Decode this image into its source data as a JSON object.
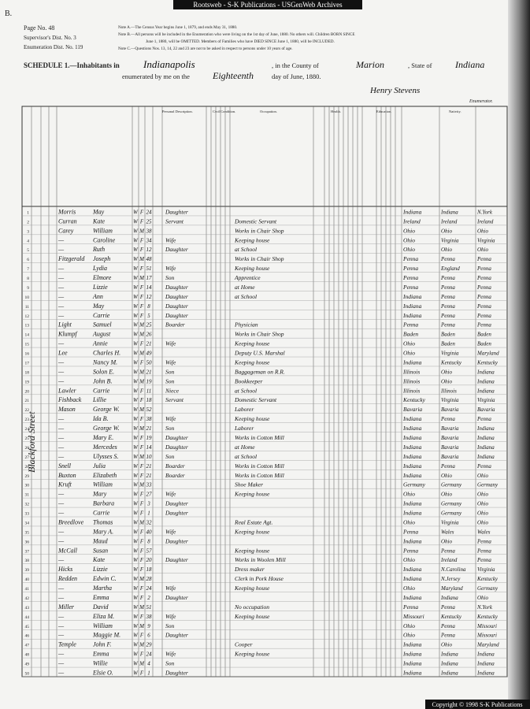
{
  "banner": "Rootsweb - S-K Publications - USGenWeb Archives",
  "corner": "B.",
  "header": {
    "page_no": "Page No. 48",
    "supervisor": "Supervisor's Dist. No. 3",
    "enumeration": "Enumeration Dist. No. 119",
    "notes": [
      "Note A.—The Census Year begins June 1, 1879, and ends May 31, 1880.",
      "Note B.—All persons will be included in the Enumeration who were living on the 1st day of June, 1880. No others will. Children BORN SINCE",
      "June 1, 1880, will be OMITTED. Members of Families who have DIED SINCE June 1, 1880, will be INCLUDED.",
      "Note C.—Questions Nos. 13, 14, 22 and 23 are not to be asked in respect to persons under 10 years of age."
    ]
  },
  "schedule": {
    "label": "SCHEDULE 1.—Inhabitants in",
    "city": "Indianapolis",
    "county_label": ", in the County of",
    "county": "Marion",
    "state_label": ", State of",
    "state": "Indiana",
    "enum_label": "enumerated by me on the",
    "day": "Eighteenth",
    "month_label": "day of June, 1880.",
    "enumerator": "Henry Stevens",
    "enumerator_label": "Enumerator."
  },
  "column_headers": [
    "Personal Description.",
    "Civil Condition.",
    "Occupation.",
    "Health.",
    "Education.",
    "Nativity."
  ],
  "side_label": "Blackford Street",
  "table": {
    "rows": [
      {
        "line": 1,
        "surname": "Morris",
        "given": "May",
        "color": "W",
        "sex": "F",
        "age": "24",
        "relation": "Daughter",
        "occupation": null,
        "birth": "Indiana",
        "father": "Indiana",
        "mother": "N.York"
      },
      {
        "line": 2,
        "surname": "Curran",
        "given": "Kate",
        "color": "W",
        "sex": "F",
        "age": "25",
        "relation": "Servant",
        "occupation": "Domestic Servant",
        "birth": "Ireland",
        "father": "Ireland",
        "mother": "Ireland"
      },
      {
        "line": 3,
        "surname": "Carey",
        "given": "William",
        "color": "W",
        "sex": "M",
        "age": "38",
        "relation": null,
        "occupation": "Works in Chair Shop",
        "birth": "Ohio",
        "father": "Ohio",
        "mother": "Ohio"
      },
      {
        "line": 4,
        "surname": "—",
        "given": "Caroline",
        "color": "W",
        "sex": "F",
        "age": "34",
        "relation": "Wife",
        "occupation": "Keeping house",
        "birth": "Ohio",
        "father": "Virginia",
        "mother": "Virginia"
      },
      {
        "line": 5,
        "surname": "—",
        "given": "Ruth",
        "color": "W",
        "sex": "F",
        "age": "12",
        "relation": "Daughter",
        "occupation": "at School",
        "birth": "Ohio",
        "father": "Ohio",
        "mother": "Ohio"
      },
      {
        "line": 6,
        "surname": "Fitzgerald",
        "given": "Joseph",
        "color": "W",
        "sex": "M",
        "age": "48",
        "relation": null,
        "occupation": "Works in Chair Shop",
        "birth": "Penna",
        "father": "Penna",
        "mother": "Penna"
      },
      {
        "line": 7,
        "surname": "—",
        "given": "Lydia",
        "color": "W",
        "sex": "F",
        "age": "51",
        "relation": "Wife",
        "occupation": "Keeping house",
        "birth": "Penna",
        "father": "England",
        "mother": "Penna"
      },
      {
        "line": 8,
        "surname": "—",
        "given": "Elmore",
        "color": "W",
        "sex": "M",
        "age": "17",
        "relation": "Son",
        "occupation": "Apprentice",
        "birth": "Penna",
        "father": "Penna",
        "mother": "Penna"
      },
      {
        "line": 9,
        "surname": "—",
        "given": "Lizzie",
        "color": "W",
        "sex": "F",
        "age": "14",
        "relation": "Daughter",
        "occupation": "at Home",
        "birth": "Penna",
        "father": "Penna",
        "mother": "Penna"
      },
      {
        "line": 10,
        "surname": "—",
        "given": "Ann",
        "color": "W",
        "sex": "F",
        "age": "12",
        "relation": "Daughter",
        "occupation": "at School",
        "birth": "Indiana",
        "father": "Penna",
        "mother": "Penna"
      },
      {
        "line": 11,
        "surname": "—",
        "given": "May",
        "color": "W",
        "sex": "F",
        "age": "8",
        "relation": "Daughter",
        "occupation": null,
        "birth": "Indiana",
        "father": "Penna",
        "mother": "Penna"
      },
      {
        "line": 12,
        "surname": "—",
        "given": "Carrie",
        "color": "W",
        "sex": "F",
        "age": "5",
        "relation": "Daughter",
        "occupation": null,
        "birth": "Indiana",
        "father": "Penna",
        "mother": "Penna"
      },
      {
        "line": 13,
        "surname": "Light",
        "given": "Samuel",
        "color": "W",
        "sex": "M",
        "age": "25",
        "relation": "Boarder",
        "occupation": "Physician",
        "birth": "Penna",
        "father": "Penna",
        "mother": "Penna"
      },
      {
        "line": 14,
        "surname": "Klumpf",
        "given": "August",
        "color": "W",
        "sex": "M",
        "age": "26",
        "relation": null,
        "occupation": "Works in Chair Shop",
        "birth": "Baden",
        "father": "Baden",
        "mother": "Baden"
      },
      {
        "line": 15,
        "surname": "—",
        "given": "Annie",
        "color": "W",
        "sex": "F",
        "age": "21",
        "relation": "Wife",
        "occupation": "Keeping house",
        "birth": "Ohio",
        "father": "Baden",
        "mother": "Baden"
      },
      {
        "line": 16,
        "surname": "Lee",
        "given": "Charles H.",
        "color": "W",
        "sex": "M",
        "age": "49",
        "relation": null,
        "occupation": "Deputy U.S. Marshal",
        "birth": "Ohio",
        "father": "Virginia",
        "mother": "Maryland"
      },
      {
        "line": 17,
        "surname": "—",
        "given": "Nancy M.",
        "color": "W",
        "sex": "F",
        "age": "50",
        "relation": "Wife",
        "occupation": "Keeping house",
        "birth": "Indiana",
        "father": "Kentucky",
        "mother": "Kentucky"
      },
      {
        "line": 18,
        "surname": "—",
        "given": "Solon E.",
        "color": "W",
        "sex": "M",
        "age": "21",
        "relation": "Son",
        "occupation": "Baggageman on R.R.",
        "birth": "Illinois",
        "father": "Ohio",
        "mother": "Indiana"
      },
      {
        "line": 19,
        "surname": "—",
        "given": "John B.",
        "color": "W",
        "sex": "M",
        "age": "19",
        "relation": "Son",
        "occupation": "Bookkeeper",
        "birth": "Illinois",
        "father": "Ohio",
        "mother": "Indiana"
      },
      {
        "line": 20,
        "surname": "Lawler",
        "given": "Carrie",
        "color": "W",
        "sex": "F",
        "age": "11",
        "relation": "Niece",
        "occupation": "at School",
        "birth": "Illinois",
        "father": "Illinois",
        "mother": "Indiana"
      },
      {
        "line": 21,
        "surname": "Fishback",
        "given": "Lillie",
        "color": "W",
        "sex": "F",
        "age": "18",
        "relation": "Servant",
        "occupation": "Domestic Servant",
        "birth": "Kentucky",
        "father": "Virginia",
        "mother": "Virginia"
      },
      {
        "line": 22,
        "surname": "Mason",
        "given": "George W.",
        "color": "W",
        "sex": "M",
        "age": "52",
        "relation": null,
        "occupation": "Laborer",
        "birth": "Bavaria",
        "father": "Bavaria",
        "mother": "Bavaria"
      },
      {
        "line": 23,
        "surname": "—",
        "given": "Ida B.",
        "color": "W",
        "sex": "F",
        "age": "38",
        "relation": "Wife",
        "occupation": "Keeping house",
        "birth": "Indiana",
        "father": "Penna",
        "mother": "Penna"
      },
      {
        "line": 24,
        "surname": "—",
        "given": "George W.",
        "color": "W",
        "sex": "M",
        "age": "21",
        "relation": "Son",
        "occupation": "Laborer",
        "birth": "Indiana",
        "father": "Bavaria",
        "mother": "Indiana"
      },
      {
        "line": 25,
        "surname": "—",
        "given": "Mary E.",
        "color": "W",
        "sex": "F",
        "age": "19",
        "relation": "Daughter",
        "occupation": "Works in Cotton Mill",
        "birth": "Indiana",
        "father": "Bavaria",
        "mother": "Indiana"
      },
      {
        "line": 26,
        "surname": "—",
        "given": "Mercedes",
        "color": "W",
        "sex": "F",
        "age": "14",
        "relation": "Daughter",
        "occupation": "at Home",
        "birth": "Indiana",
        "father": "Bavaria",
        "mother": "Indiana"
      },
      {
        "line": 27,
        "surname": "—",
        "given": "Ulysses S.",
        "color": "W",
        "sex": "M",
        "age": "10",
        "relation": "Son",
        "occupation": "at School",
        "birth": "Indiana",
        "father": "Bavaria",
        "mother": "Indiana"
      },
      {
        "line": 28,
        "surname": "Snell",
        "given": "Julia",
        "color": "W",
        "sex": "F",
        "age": "21",
        "relation": "Boarder",
        "occupation": "Works in Cotton Mill",
        "birth": "Indiana",
        "father": "Penna",
        "mother": "Penna"
      },
      {
        "line": 29,
        "surname": "Buxton",
        "given": "Elizabeth",
        "color": "W",
        "sex": "F",
        "age": "21",
        "relation": "Boarder",
        "occupation": "Works in Cotton Mill",
        "birth": "Indiana",
        "father": "Ohio",
        "mother": "Ohio"
      },
      {
        "line": 30,
        "surname": "Kruft",
        "given": "William",
        "color": "W",
        "sex": "M",
        "age": "33",
        "relation": null,
        "occupation": "Shoe Maker",
        "birth": "Germany",
        "father": "Germany",
        "mother": "Germany"
      },
      {
        "line": 31,
        "surname": "—",
        "given": "Mary",
        "color": "W",
        "sex": "F",
        "age": "27",
        "relation": "Wife",
        "occupation": "Keeping house",
        "birth": "Ohio",
        "father": "Ohio",
        "mother": "Ohio"
      },
      {
        "line": 32,
        "surname": "—",
        "given": "Barbara",
        "color": "W",
        "sex": "F",
        "age": "3",
        "relation": "Daughter",
        "occupation": null,
        "birth": "Indiana",
        "father": "Germany",
        "mother": "Ohio"
      },
      {
        "line": 33,
        "surname": "—",
        "given": "Carrie",
        "color": "W",
        "sex": "F",
        "age": "1",
        "relation": "Daughter",
        "occupation": null,
        "birth": "Indiana",
        "father": "Germany",
        "mother": "Ohio"
      },
      {
        "line": 34,
        "surname": "Breedlove",
        "given": "Thomas",
        "color": "W",
        "sex": "M",
        "age": "32",
        "relation": null,
        "occupation": "Real Estate Agt.",
        "birth": "Ohio",
        "father": "Virginia",
        "mother": "Ohio"
      },
      {
        "line": 35,
        "surname": "—",
        "given": "Mary A.",
        "color": "W",
        "sex": "F",
        "age": "40",
        "relation": "Wife",
        "occupation": "Keeping house",
        "birth": "Penna",
        "father": "Wales",
        "mother": "Wales"
      },
      {
        "line": 36,
        "surname": "—",
        "given": "Maud",
        "color": "W",
        "sex": "F",
        "age": "8",
        "relation": "Daughter",
        "occupation": null,
        "birth": "Indiana",
        "father": "Ohio",
        "mother": "Penna"
      },
      {
        "line": 37,
        "surname": "McCall",
        "given": "Susan",
        "color": "W",
        "sex": "F",
        "age": "57",
        "relation": null,
        "occupation": "Keeping house",
        "birth": "Penna",
        "father": "Penna",
        "mother": "Penna"
      },
      {
        "line": 38,
        "surname": "—",
        "given": "Kate",
        "color": "W",
        "sex": "F",
        "age": "20",
        "relation": "Daughter",
        "occupation": "Works in Woolen Mill",
        "birth": "Ohio",
        "father": "Ireland",
        "mother": "Penna"
      },
      {
        "line": 39,
        "surname": "Hicks",
        "given": "Lizzie",
        "color": "W",
        "sex": "F",
        "age": "18",
        "relation": null,
        "occupation": "Dress maker",
        "birth": "Indiana",
        "father": "N.Carolina",
        "mother": "Virginia"
      },
      {
        "line": 40,
        "surname": "Redden",
        "given": "Edwin C.",
        "color": "W",
        "sex": "M",
        "age": "28",
        "relation": null,
        "occupation": "Clerk in Pork House",
        "birth": "Indiana",
        "father": "N.Jersey",
        "mother": "Kentucky"
      },
      {
        "line": 41,
        "surname": "—",
        "given": "Martha",
        "color": "W",
        "sex": "F",
        "age": "24",
        "relation": "Wife",
        "occupation": "Keeping house",
        "birth": "Ohio",
        "father": "Maryland",
        "mother": "Germany"
      },
      {
        "line": 42,
        "surname": "—",
        "given": "Emma",
        "color": "W",
        "sex": "F",
        "age": "2",
        "relation": "Daughter",
        "occupation": null,
        "birth": "Indiana",
        "father": "Indiana",
        "mother": "Ohio"
      },
      {
        "line": 43,
        "surname": "Miller",
        "given": "David",
        "color": "W",
        "sex": "M",
        "age": "51",
        "relation": null,
        "occupation": "No occupation",
        "birth": "Penna",
        "father": "Penna",
        "mother": "N.York"
      },
      {
        "line": 44,
        "surname": "—",
        "given": "Eliza M.",
        "color": "W",
        "sex": "F",
        "age": "38",
        "relation": "Wife",
        "occupation": "Keeping house",
        "birth": "Missouri",
        "father": "Kentucky",
        "mother": "Kentucky"
      },
      {
        "line": 45,
        "surname": "—",
        "given": "William",
        "color": "W",
        "sex": "M",
        "age": "9",
        "relation": "Son",
        "occupation": null,
        "birth": "Ohio",
        "father": "Penna",
        "mother": "Missouri"
      },
      {
        "line": 46,
        "surname": "—",
        "given": "Maggie M.",
        "color": "W",
        "sex": "F",
        "age": "6",
        "relation": "Daughter",
        "occupation": null,
        "birth": "Ohio",
        "father": "Penna",
        "mother": "Missouri"
      },
      {
        "line": 47,
        "surname": "Temple",
        "given": "John F.",
        "color": "W",
        "sex": "M",
        "age": "29",
        "relation": null,
        "occupation": "Cooper",
        "birth": "Indiana",
        "father": "Ohio",
        "mother": "Maryland"
      },
      {
        "line": 48,
        "surname": "—",
        "given": "Emma",
        "color": "W",
        "sex": "F",
        "age": "24",
        "relation": "Wife",
        "occupation": "Keeping house",
        "birth": "Indiana",
        "father": "Indiana",
        "mother": "Indiana"
      },
      {
        "line": 49,
        "surname": "—",
        "given": "Willie",
        "color": "W",
        "sex": "M",
        "age": "4",
        "relation": "Son",
        "occupation": null,
        "birth": "Indiana",
        "father": "Indiana",
        "mother": "Indiana"
      },
      {
        "line": 50,
        "surname": "—",
        "given": "Elsie O.",
        "color": "W",
        "sex": "F",
        "age": "1",
        "relation": "Daughter",
        "occupation": null,
        "birth": "Indiana",
        "father": "Indiana",
        "mother": "Indiana"
      }
    ]
  },
  "copyright": "Copyright © 1998 S-K Publications"
}
